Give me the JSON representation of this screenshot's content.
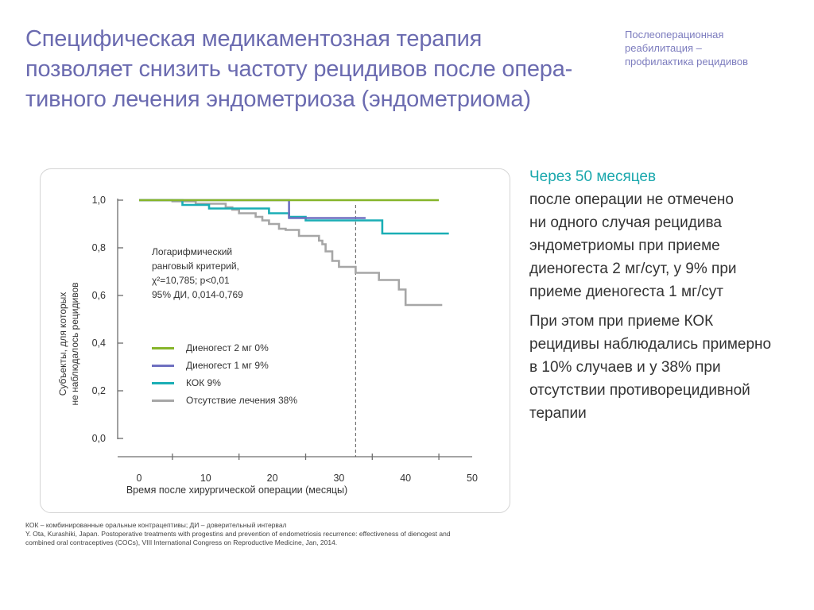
{
  "slide": {
    "title_lines": [
      "Специфическая медикаментозная терапия",
      "позволяет снизить частоту рецидивов после опера-",
      "тивного лечения эндометриоза (эндометриома)"
    ],
    "section_lines": [
      "Послеоперационная",
      "реабилитация –",
      "профилактика рецидивов"
    ]
  },
  "chart_data": {
    "type": "line",
    "step": true,
    "xlabel": "Время после хирургической операции (месяцы)",
    "ylabel_lines": [
      "Субъекты, для которых",
      "не наблюдалось рецидивов"
    ],
    "xlim": [
      0,
      50
    ],
    "ylim": [
      0,
      1
    ],
    "xticks": [
      0,
      10,
      20,
      30,
      40,
      50
    ],
    "yticks": [
      0,
      0.2,
      0.4,
      0.6,
      0.8,
      1.0
    ],
    "xtick_labels": [
      "0",
      "10",
      "20",
      "30",
      "40",
      "50"
    ],
    "ytick_labels": [
      "0,0",
      "0,2",
      "0,4",
      "0,6",
      "0,8",
      "1,0"
    ],
    "vline_x": 32.5,
    "annotation_lines": [
      "Логарифмический",
      "ранговый критерий,",
      "χ²=10,785; p<0,01",
      "95% ДИ, 0,014-0,769"
    ],
    "legend_position": "lower-left",
    "series": [
      {
        "name": "Диеногест 2 мг 0%",
        "color": "#86b52a",
        "points": [
          [
            0,
            1.0
          ],
          [
            45,
            1.0
          ]
        ]
      },
      {
        "name": "Диеногест 1 мг 9%",
        "color": "#6e6fc0",
        "points": [
          [
            0,
            1.0
          ],
          [
            22.5,
            1.0
          ],
          [
            22.5,
            0.925
          ],
          [
            34,
            0.925
          ]
        ]
      },
      {
        "name": "КОК 9%",
        "color": "#1aaeb5",
        "points": [
          [
            0,
            1.0
          ],
          [
            6.5,
            1.0
          ],
          [
            6.5,
            0.98
          ],
          [
            10.5,
            0.98
          ],
          [
            10.5,
            0.965
          ],
          [
            19.5,
            0.965
          ],
          [
            19.5,
            0.945
          ],
          [
            22.5,
            0.945
          ],
          [
            22.5,
            0.93
          ],
          [
            25,
            0.93
          ],
          [
            25,
            0.915
          ],
          [
            36.5,
            0.915
          ],
          [
            36.5,
            0.86
          ],
          [
            46.5,
            0.86
          ]
        ]
      },
      {
        "name": "Отсутствие лечения 38%",
        "color": "#a6a6a6",
        "points": [
          [
            0,
            1.0
          ],
          [
            5,
            1.0
          ],
          [
            5,
            0.995
          ],
          [
            8.5,
            0.995
          ],
          [
            8.5,
            0.985
          ],
          [
            13,
            0.985
          ],
          [
            13,
            0.97
          ],
          [
            14,
            0.97
          ],
          [
            14,
            0.96
          ],
          [
            15,
            0.96
          ],
          [
            15,
            0.945
          ],
          [
            17.5,
            0.945
          ],
          [
            17.5,
            0.93
          ],
          [
            18.5,
            0.93
          ],
          [
            18.5,
            0.915
          ],
          [
            19.5,
            0.915
          ],
          [
            19.5,
            0.9
          ],
          [
            21,
            0.9
          ],
          [
            21,
            0.88
          ],
          [
            22,
            0.88
          ],
          [
            22,
            0.875
          ],
          [
            24,
            0.875
          ],
          [
            24,
            0.85
          ],
          [
            27,
            0.85
          ],
          [
            27,
            0.83
          ],
          [
            27.5,
            0.83
          ],
          [
            27.5,
            0.815
          ],
          [
            28,
            0.815
          ],
          [
            28,
            0.785
          ],
          [
            29,
            0.785
          ],
          [
            29,
            0.745
          ],
          [
            30,
            0.745
          ],
          [
            30,
            0.72
          ],
          [
            32.5,
            0.72
          ],
          [
            32.5,
            0.695
          ],
          [
            36,
            0.695
          ],
          [
            36,
            0.665
          ],
          [
            39,
            0.665
          ],
          [
            39,
            0.625
          ],
          [
            40,
            0.625
          ],
          [
            40,
            0.56
          ],
          [
            45.5,
            0.56
          ]
        ]
      }
    ]
  },
  "side_text": {
    "highlight": "Через 50 месяцев",
    "para1_lines": [
      "после операции не отмечено",
      "ни одного случая рецидива",
      "эндометриомы при приеме",
      "диеногеста 2 мг/сут, у 9% при",
      "приеме диеногеста 1 мг/сут"
    ],
    "para2_lines": [
      "При этом при приеме КОК",
      "рецидивы наблюдались примерно",
      "в 10% случаев и у 38% при",
      "отсутствии противорецидивной",
      "терапии"
    ]
  },
  "footnotes": {
    "lines": [
      "КОК – комбинированные оральные контрацептивы; ДИ – доверительный интервал",
      "Y. Ota, Kurashiki, Japan. Postoperative treatments with progestins and prevention of endometriosis recurrence: effectiveness of dienogest and",
      "combined oral contraceptives (COCs), VIII International Congress on Reproductive Medicine, Jan, 2014."
    ]
  }
}
